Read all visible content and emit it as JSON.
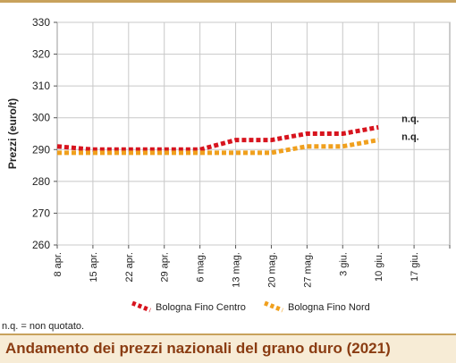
{
  "note": "n.q. = non quotato.",
  "caption": "Andamento dei prezzi nazionali del grano duro (2021)",
  "chart_data": {
    "type": "line",
    "ylabel": "Prezzi (euro/t)",
    "xlabel": "",
    "ylim": [
      260,
      330
    ],
    "yticks": [
      260,
      270,
      280,
      290,
      300,
      310,
      320,
      330
    ],
    "grid": true,
    "legend_position": "bottom",
    "categories": [
      "8 apr.",
      "15 apr.",
      "22 apr.",
      "29 apr.",
      "6 mag.",
      "13 mag.",
      "20 mag.",
      "27 mag.",
      "3 giu.",
      "10 giu.",
      "17 giu."
    ],
    "series": [
      {
        "name": "Bologna Fino Centro",
        "color": "#d7141e",
        "values": [
          291,
          290,
          290,
          290,
          290,
          293,
          293,
          295,
          295,
          297,
          null
        ],
        "end_label": "n.q."
      },
      {
        "name": "Bologna Fino Nord",
        "color": "#f0a01e",
        "values": [
          289,
          289,
          289,
          289,
          289,
          289,
          289,
          291,
          291,
          293,
          null
        ],
        "end_label": "n.q."
      }
    ]
  }
}
